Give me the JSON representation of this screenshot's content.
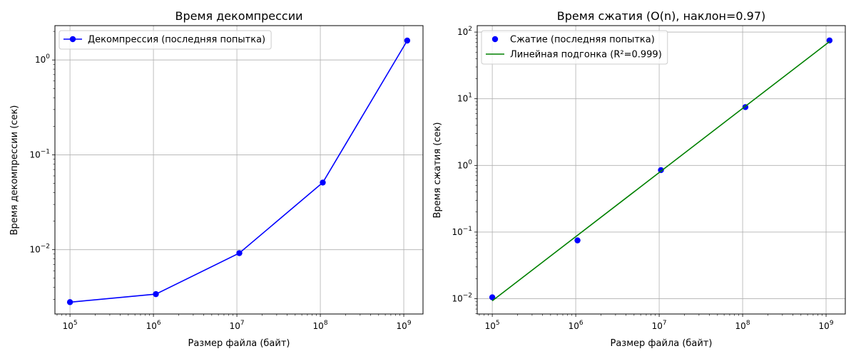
{
  "chart_data": [
    {
      "type": "line",
      "title": "Время декомпрессии",
      "xlabel": "Размер файла (байт)",
      "ylabel": "Время декомпрессии (сек)",
      "xscale": "log",
      "yscale": "log",
      "xlim": [
        66000,
        1700000000
      ],
      "ylim": [
        0.0021,
        2.3
      ],
      "xticks": [
        {
          "value": 100000,
          "base": "10",
          "exp": "5"
        },
        {
          "value": 1000000,
          "base": "10",
          "exp": "6"
        },
        {
          "value": 10000000,
          "base": "10",
          "exp": "7"
        },
        {
          "value": 100000000,
          "base": "10",
          "exp": "8"
        },
        {
          "value": 1000000000,
          "base": "10",
          "exp": "9"
        }
      ],
      "yticks": [
        {
          "value": 0.01,
          "base": "10",
          "exp": "−2"
        },
        {
          "value": 0.1,
          "base": "10",
          "exp": "−1"
        },
        {
          "value": 1,
          "base": "10",
          "exp": "0"
        }
      ],
      "grid": true,
      "legend_position": "top-left",
      "series": [
        {
          "name": "Декомпрессия (последняя попытка)",
          "style": "line-marker",
          "color": "#0000ff",
          "x": [
            100000,
            1070000,
            10700000,
            107000000,
            1100000000
          ],
          "y": [
            0.0028,
            0.0034,
            0.0092,
            0.051,
            1.6
          ]
        }
      ]
    },
    {
      "type": "scatter",
      "title": "Время сжатия (O(n), наклон=0.97)",
      "xlabel": "Размер файла (байт)",
      "ylabel": "Время сжатия (сек)",
      "xscale": "log",
      "yscale": "log",
      "xlim": [
        66000,
        1700000000
      ],
      "ylim": [
        0.0059,
        125
      ],
      "xticks": [
        {
          "value": 100000,
          "base": "10",
          "exp": "5"
        },
        {
          "value": 1000000,
          "base": "10",
          "exp": "6"
        },
        {
          "value": 10000000,
          "base": "10",
          "exp": "7"
        },
        {
          "value": 100000000,
          "base": "10",
          "exp": "8"
        },
        {
          "value": 1000000000,
          "base": "10",
          "exp": "9"
        }
      ],
      "yticks": [
        {
          "value": 0.01,
          "base": "10",
          "exp": "−2"
        },
        {
          "value": 0.1,
          "base": "10",
          "exp": "−1"
        },
        {
          "value": 1,
          "base": "10",
          "exp": "0"
        },
        {
          "value": 10,
          "base": "10",
          "exp": "1"
        },
        {
          "value": 100,
          "base": "10",
          "exp": "2"
        }
      ],
      "grid": true,
      "legend_position": "top-left",
      "series": [
        {
          "name": "Сжатие (последняя попытка)",
          "style": "marker",
          "color": "#0000ff",
          "x": [
            100000,
            1050000,
            10500000,
            108000000,
            1100000000
          ],
          "y": [
            0.0105,
            0.075,
            0.85,
            7.5,
            75
          ]
        },
        {
          "name": "Линейная подгонка (R²=0.999)",
          "style": "line",
          "color": "#008000",
          "x": [
            100000,
            1100000000
          ],
          "y": [
            0.0093,
            72
          ]
        }
      ]
    }
  ]
}
